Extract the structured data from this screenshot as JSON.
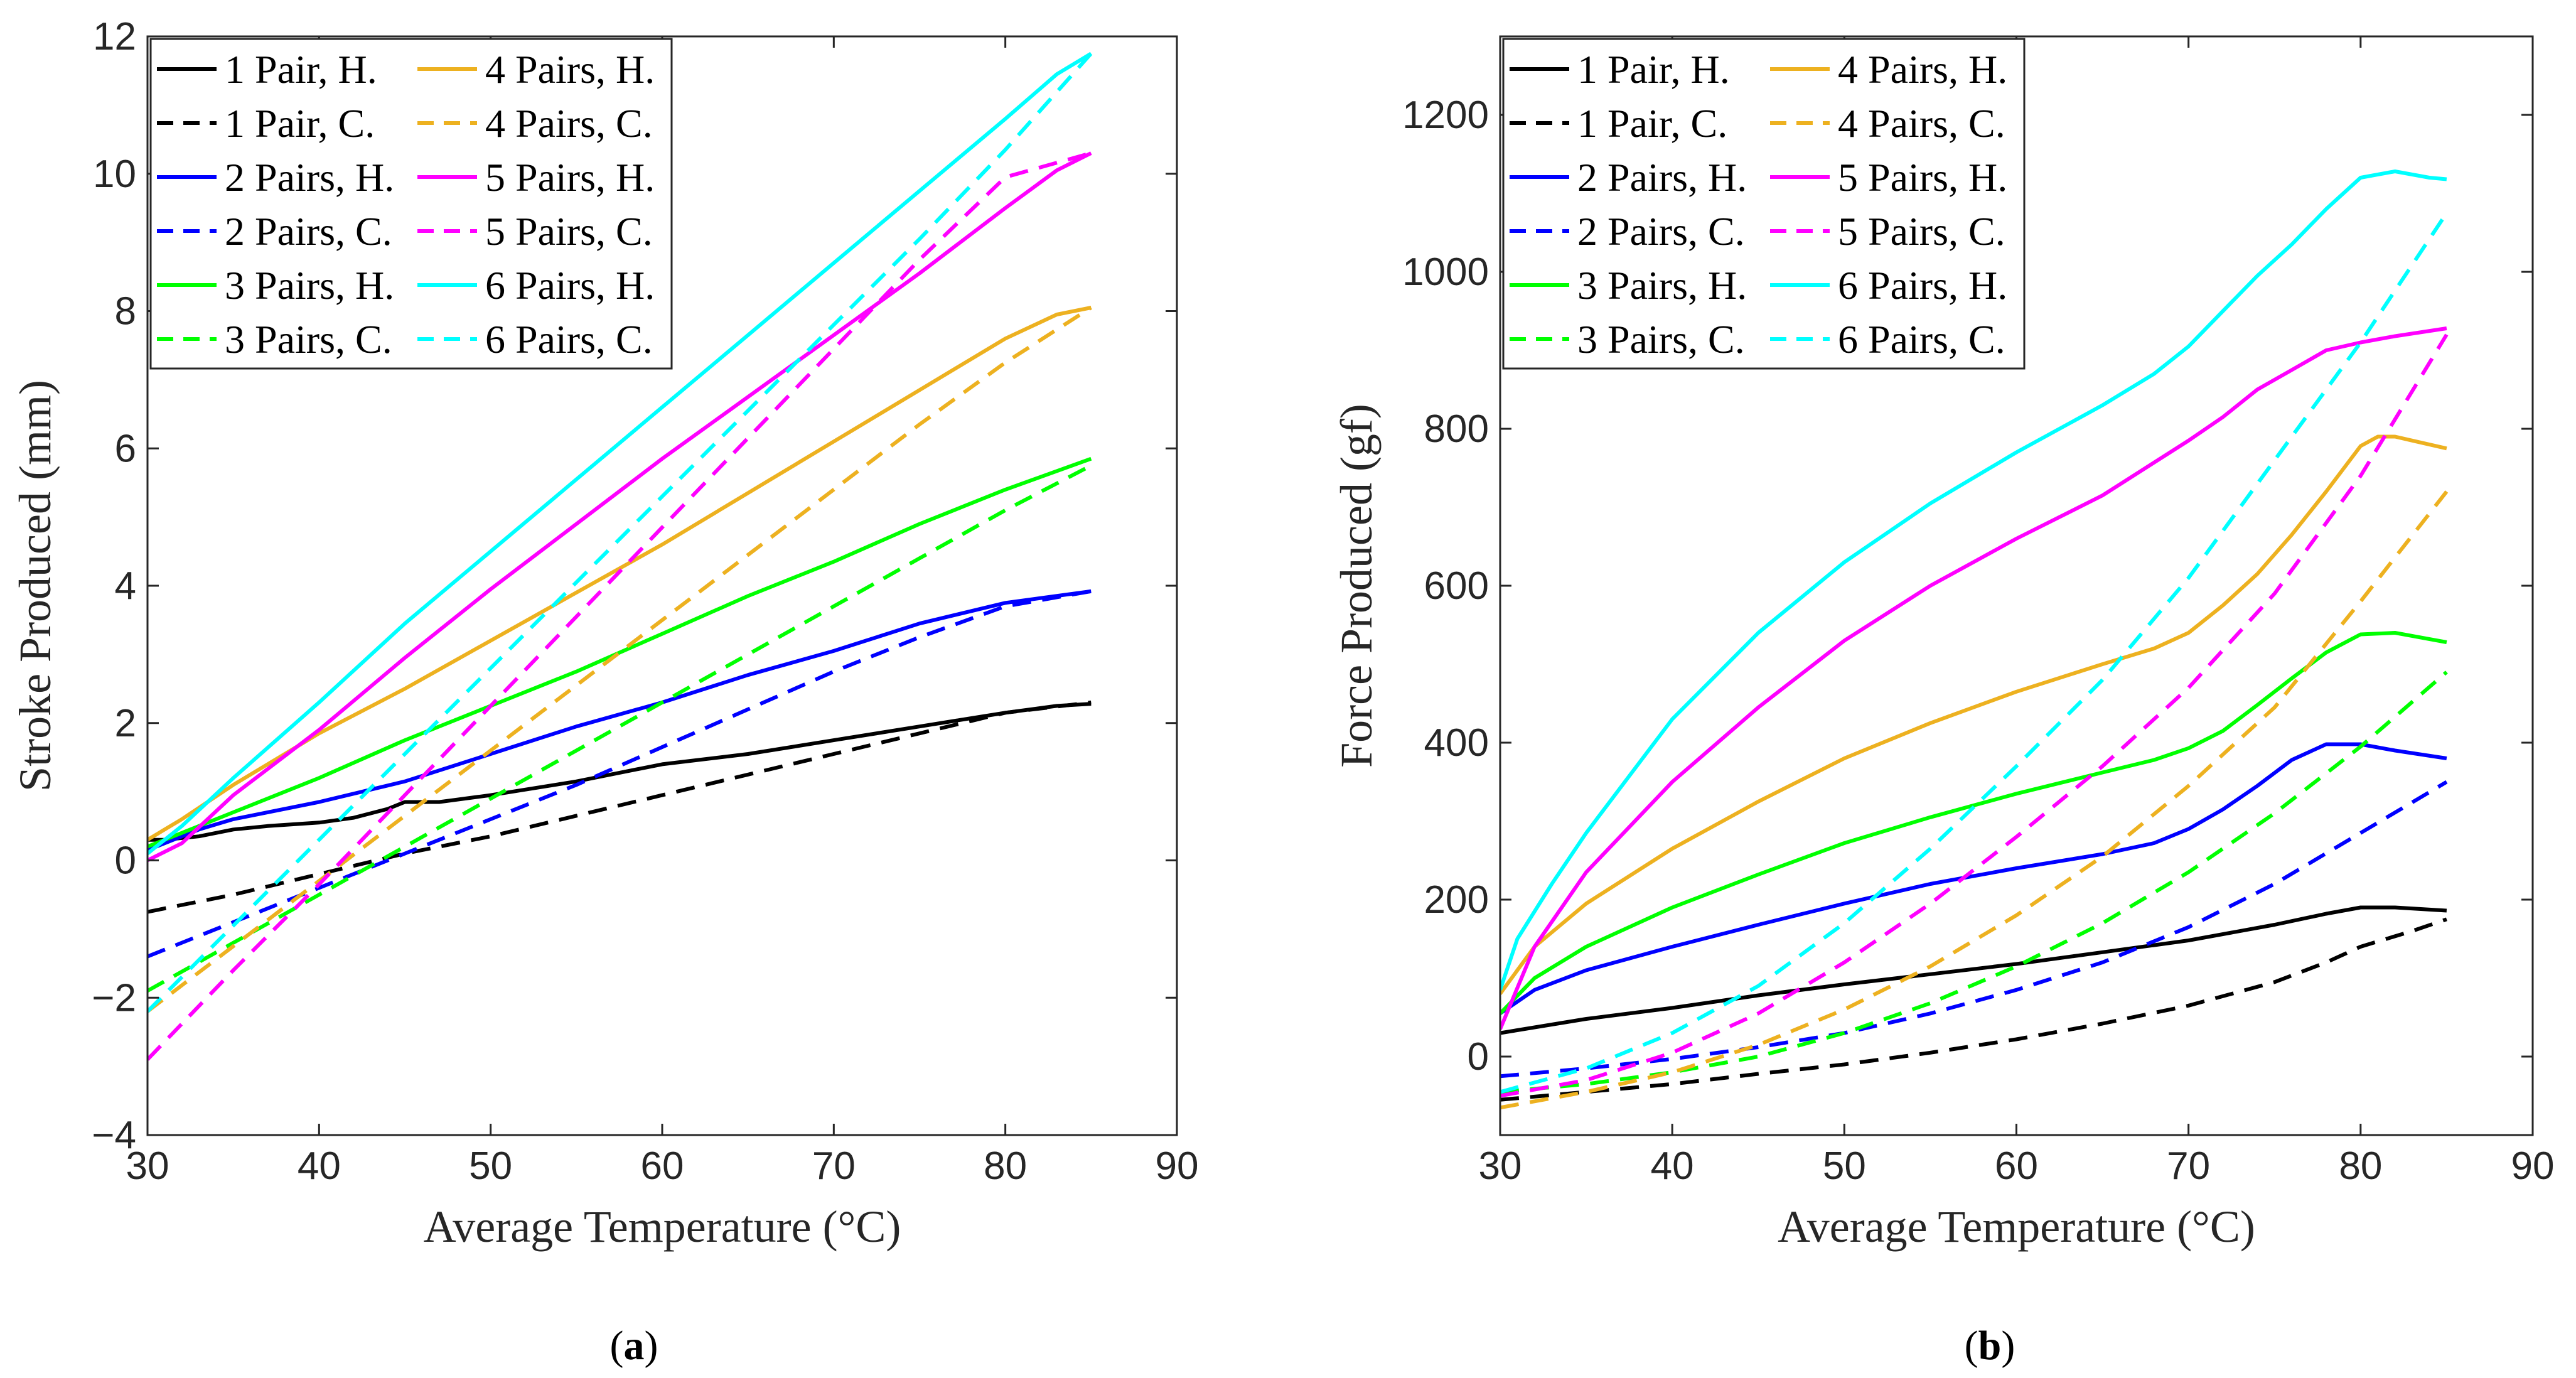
{
  "figure": {
    "panel_labels": [
      "a",
      "b"
    ]
  },
  "chart_data": [
    {
      "type": "line",
      "panel": "a",
      "title": "",
      "xlabel": "Average Temperature (°C)",
      "ylabel": "Stroke Produced (mm)",
      "xlim": [
        30,
        90
      ],
      "ylim": [
        -4,
        12
      ],
      "xticks": [
        30,
        40,
        50,
        60,
        70,
        80,
        90
      ],
      "yticks": [
        -4,
        -2,
        0,
        2,
        4,
        6,
        8,
        10,
        12
      ],
      "ytick_labels": [
        "−4",
        "−2",
        "0",
        "2",
        "4",
        "6",
        "8",
        "10",
        "12"
      ],
      "grid": false,
      "legend_position": "top-left",
      "series": [
        {
          "name": "1 Pair, H.",
          "color": "#000000",
          "dash": "solid",
          "x": [
            30,
            31,
            33,
            35,
            37,
            40,
            42,
            44,
            45,
            47,
            50,
            55,
            60,
            65,
            70,
            75,
            80,
            83,
            85
          ],
          "y": [
            0.3,
            0.3,
            0.35,
            0.45,
            0.5,
            0.55,
            0.62,
            0.75,
            0.85,
            0.85,
            0.95,
            1.15,
            1.4,
            1.55,
            1.75,
            1.95,
            2.15,
            2.25,
            2.28
          ]
        },
        {
          "name": "1 Pair, C.",
          "color": "#000000",
          "dash": "dashed",
          "x": [
            30,
            35,
            40,
            45,
            50,
            55,
            60,
            65,
            70,
            75,
            80,
            85
          ],
          "y": [
            -0.75,
            -0.5,
            -0.2,
            0.1,
            0.35,
            0.65,
            0.95,
            1.25,
            1.55,
            1.85,
            2.15,
            2.3
          ]
        },
        {
          "name": "2 Pairs, H.",
          "color": "#0000ff",
          "dash": "solid",
          "x": [
            30,
            33,
            35,
            40,
            45,
            50,
            55,
            60,
            65,
            70,
            75,
            80,
            85
          ],
          "y": [
            0.15,
            0.45,
            0.6,
            0.85,
            1.15,
            1.55,
            1.95,
            2.3,
            2.7,
            3.05,
            3.45,
            3.75,
            3.92
          ]
        },
        {
          "name": "2 Pairs, C.",
          "color": "#0000ff",
          "dash": "dashed",
          "x": [
            30,
            35,
            40,
            45,
            50,
            55,
            60,
            65,
            70,
            75,
            80,
            85
          ],
          "y": [
            -1.4,
            -0.9,
            -0.4,
            0.1,
            0.6,
            1.1,
            1.65,
            2.2,
            2.75,
            3.25,
            3.7,
            3.92
          ]
        },
        {
          "name": "3 Pairs, H.",
          "color": "#00ff00",
          "dash": "solid",
          "x": [
            30,
            33,
            35,
            40,
            45,
            50,
            55,
            60,
            65,
            70,
            75,
            80,
            85
          ],
          "y": [
            0.2,
            0.5,
            0.7,
            1.2,
            1.75,
            2.25,
            2.75,
            3.3,
            3.85,
            4.35,
            4.9,
            5.4,
            5.85
          ]
        },
        {
          "name": "3 Pairs, C.",
          "color": "#00ff00",
          "dash": "dashed",
          "x": [
            30,
            35,
            40,
            45,
            50,
            55,
            60,
            65,
            70,
            75,
            80,
            85
          ],
          "y": [
            -1.9,
            -1.2,
            -0.5,
            0.2,
            0.9,
            1.6,
            2.3,
            3.0,
            3.7,
            4.4,
            5.1,
            5.75
          ]
        },
        {
          "name": "4 Pairs, H.",
          "color": "#edb120",
          "dash": "solid",
          "x": [
            30,
            32,
            35,
            40,
            45,
            50,
            55,
            60,
            65,
            70,
            75,
            80,
            83,
            85
          ],
          "y": [
            0.3,
            0.6,
            1.1,
            1.85,
            2.5,
            3.2,
            3.9,
            4.6,
            5.35,
            6.1,
            6.85,
            7.6,
            7.95,
            8.05
          ]
        },
        {
          "name": "4 Pairs, C.",
          "color": "#edb120",
          "dash": "dashed",
          "x": [
            30,
            35,
            40,
            45,
            50,
            55,
            60,
            65,
            70,
            75,
            80,
            85
          ],
          "y": [
            -2.2,
            -1.25,
            -0.3,
            0.65,
            1.6,
            2.55,
            3.5,
            4.45,
            5.4,
            6.35,
            7.25,
            8.05
          ]
        },
        {
          "name": "5 Pairs, H.",
          "color": "#ff00ff",
          "dash": "solid",
          "x": [
            30,
            32,
            35,
            40,
            45,
            50,
            55,
            60,
            65,
            70,
            75,
            80,
            83,
            85
          ],
          "y": [
            0.0,
            0.25,
            0.95,
            1.9,
            2.95,
            3.95,
            4.9,
            5.85,
            6.75,
            7.65,
            8.55,
            9.5,
            10.05,
            10.3
          ]
        },
        {
          "name": "5 Pairs, C.",
          "color": "#ff00ff",
          "dash": "dashed",
          "x": [
            30,
            35,
            40,
            45,
            50,
            55,
            60,
            65,
            70,
            75,
            80,
            85
          ],
          "y": [
            -2.9,
            -1.6,
            -0.35,
            0.95,
            2.25,
            3.55,
            4.85,
            6.15,
            7.45,
            8.75,
            9.95,
            10.3
          ]
        },
        {
          "name": "6 Pairs, H.",
          "color": "#00ffff",
          "dash": "solid",
          "x": [
            30,
            32,
            35,
            40,
            45,
            50,
            55,
            60,
            65,
            70,
            75,
            80,
            83,
            85
          ],
          "y": [
            0.1,
            0.5,
            1.2,
            2.3,
            3.45,
            4.5,
            5.55,
            6.6,
            7.65,
            8.7,
            9.75,
            10.8,
            11.45,
            11.75
          ]
        },
        {
          "name": "6 Pairs, C.",
          "color": "#00ffff",
          "dash": "dashed",
          "x": [
            30,
            35,
            40,
            45,
            50,
            55,
            60,
            65,
            70,
            75,
            80,
            85
          ],
          "y": [
            -2.2,
            -0.95,
            0.3,
            1.55,
            2.8,
            4.05,
            5.3,
            6.55,
            7.8,
            9.05,
            10.35,
            11.75
          ]
        }
      ]
    },
    {
      "type": "line",
      "panel": "b",
      "title": "",
      "xlabel": "Average Temperature (°C)",
      "ylabel": "Force Produced (gf)",
      "xlim": [
        30,
        90
      ],
      "ylim": [
        -100,
        1300
      ],
      "xticks": [
        30,
        40,
        50,
        60,
        70,
        80,
        90
      ],
      "yticks": [
        0,
        200,
        400,
        600,
        800,
        1000,
        1200
      ],
      "ytick_labels": [
        "0",
        "200",
        "400",
        "600",
        "800",
        "1000",
        "1200"
      ],
      "grid": false,
      "legend_position": "top-left",
      "series": [
        {
          "name": "1 Pair, H.",
          "color": "#000000",
          "dash": "solid",
          "x": [
            30,
            35,
            40,
            45,
            50,
            55,
            60,
            65,
            70,
            75,
            78,
            80,
            82,
            85
          ],
          "y": [
            30,
            48,
            62,
            78,
            92,
            105,
            118,
            133,
            148,
            168,
            182,
            190,
            190,
            186
          ]
        },
        {
          "name": "1 Pair, C.",
          "color": "#000000",
          "dash": "dashed",
          "x": [
            30,
            35,
            40,
            45,
            50,
            55,
            60,
            65,
            70,
            75,
            78,
            80,
            83,
            85
          ],
          "y": [
            -55,
            -45,
            -35,
            -22,
            -10,
            5,
            22,
            42,
            65,
            95,
            120,
            140,
            160,
            175
          ]
        },
        {
          "name": "2 Pairs, H.",
          "color": "#0000ff",
          "dash": "solid",
          "x": [
            30,
            32,
            35,
            40,
            45,
            50,
            55,
            60,
            65,
            68,
            70,
            72,
            74,
            76,
            78,
            80,
            82,
            85
          ],
          "y": [
            55,
            85,
            110,
            140,
            168,
            195,
            220,
            240,
            258,
            272,
            290,
            315,
            345,
            378,
            398,
            398,
            390,
            380
          ]
        },
        {
          "name": "2 Pairs, C.",
          "color": "#0000ff",
          "dash": "dashed",
          "x": [
            30,
            35,
            40,
            45,
            50,
            55,
            60,
            65,
            70,
            75,
            80,
            85
          ],
          "y": [
            -25,
            -15,
            -3,
            12,
            30,
            55,
            85,
            120,
            165,
            220,
            285,
            350
          ]
        },
        {
          "name": "3 Pairs, H.",
          "color": "#00ff00",
          "dash": "solid",
          "x": [
            30,
            32,
            35,
            40,
            45,
            50,
            55,
            60,
            65,
            68,
            70,
            72,
            74,
            76,
            78,
            80,
            82,
            85
          ],
          "y": [
            55,
            100,
            140,
            190,
            232,
            272,
            305,
            335,
            362,
            378,
            393,
            415,
            448,
            482,
            515,
            538,
            540,
            528
          ]
        },
        {
          "name": "3 Pairs, C.",
          "color": "#00ff00",
          "dash": "dashed",
          "x": [
            30,
            35,
            40,
            45,
            50,
            55,
            60,
            65,
            70,
            75,
            80,
            85
          ],
          "y": [
            -45,
            -35,
            -20,
            0,
            30,
            68,
            115,
            170,
            235,
            310,
            395,
            490
          ]
        },
        {
          "name": "4 Pairs, H.",
          "color": "#edb120",
          "dash": "solid",
          "x": [
            30,
            32,
            35,
            40,
            45,
            50,
            55,
            60,
            65,
            68,
            70,
            72,
            74,
            76,
            78,
            80,
            81,
            82,
            83,
            85
          ],
          "y": [
            80,
            140,
            195,
            265,
            325,
            380,
            425,
            465,
            500,
            520,
            540,
            575,
            615,
            665,
            720,
            778,
            790,
            790,
            785,
            775
          ]
        },
        {
          "name": "4 Pairs, C.",
          "color": "#edb120",
          "dash": "dashed",
          "x": [
            30,
            35,
            40,
            45,
            50,
            55,
            60,
            65,
            70,
            75,
            80,
            85
          ],
          "y": [
            -65,
            -45,
            -20,
            15,
            60,
            115,
            180,
            255,
            345,
            445,
            580,
            720
          ]
        },
        {
          "name": "5 Pairs, H.",
          "color": "#ff00ff",
          "dash": "solid",
          "x": [
            30,
            32,
            35,
            40,
            45,
            50,
            55,
            60,
            65,
            70,
            72,
            74,
            76,
            78,
            80,
            82,
            85
          ],
          "y": [
            35,
            140,
            235,
            350,
            445,
            530,
            600,
            660,
            715,
            785,
            815,
            850,
            875,
            900,
            910,
            918,
            928
          ]
        },
        {
          "name": "5 Pairs, C.",
          "color": "#ff00ff",
          "dash": "dashed",
          "x": [
            30,
            35,
            40,
            45,
            50,
            55,
            60,
            65,
            70,
            75,
            80,
            85
          ],
          "y": [
            -50,
            -30,
            5,
            55,
            120,
            195,
            280,
            370,
            470,
            590,
            740,
            920
          ]
        },
        {
          "name": "6 Pairs, H.",
          "color": "#00ffff",
          "dash": "solid",
          "x": [
            30,
            31,
            33,
            35,
            40,
            45,
            50,
            55,
            60,
            65,
            68,
            70,
            72,
            74,
            76,
            78,
            80,
            82,
            84,
            85
          ],
          "y": [
            85,
            150,
            220,
            285,
            430,
            540,
            630,
            705,
            770,
            830,
            870,
            905,
            950,
            995,
            1035,
            1080,
            1120,
            1128,
            1120,
            1118
          ]
        },
        {
          "name": "6 Pairs, C.",
          "color": "#00ffff",
          "dash": "dashed",
          "x": [
            30,
            35,
            40,
            45,
            50,
            55,
            60,
            65,
            70,
            75,
            80,
            85
          ],
          "y": [
            -45,
            -15,
            30,
            90,
            170,
            265,
            370,
            480,
            610,
            760,
            910,
            1075
          ]
        }
      ]
    }
  ]
}
